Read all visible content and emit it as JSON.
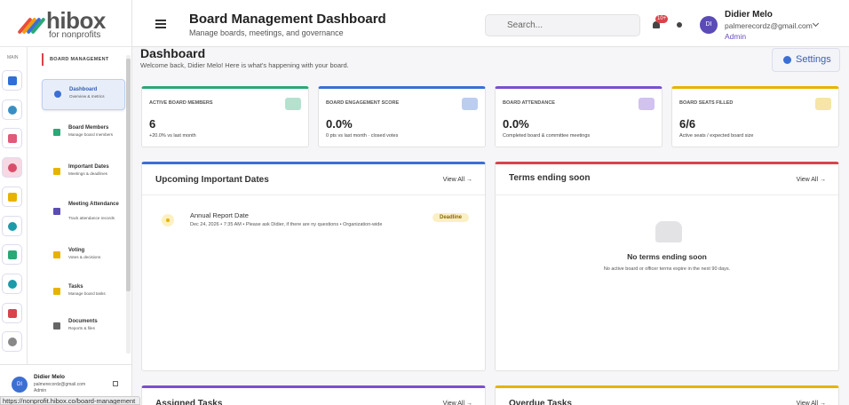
{
  "logo": {
    "name": "hibox",
    "tagline": "for nonprofits"
  },
  "header": {
    "title": "Board Management Dashboard",
    "subtitle": "Manage boards, meetings, and governance",
    "search_placeholder": "Search...",
    "notification_count": "10+",
    "user": {
      "initials": "DI",
      "name": "Didier Melo",
      "email": "palmerecordz@gmail.com",
      "role": "Admin"
    }
  },
  "rail": {
    "label": "MAIN"
  },
  "sidebar": {
    "section": "BOARD MANAGEMENT",
    "items": [
      {
        "title": "Dashboard",
        "subtitle": "Overview & metrics"
      },
      {
        "title": "Board Members",
        "subtitle": "Manage board members"
      },
      {
        "title": "Important Dates",
        "subtitle": "Meetings & deadlines"
      },
      {
        "title": "Meeting Attendance",
        "subtitle": "Track attendance records"
      },
      {
        "title": "Voting",
        "subtitle": "Votes & decisions"
      },
      {
        "title": "Tasks",
        "subtitle": "Manage board tasks"
      },
      {
        "title": "Documents",
        "subtitle": "Reports & files"
      }
    ],
    "user": {
      "initials": "DI",
      "name": "Didier Melo",
      "email": "palmerecordz@gmail.com",
      "role": "Admin"
    }
  },
  "page": {
    "title": "Dashboard",
    "welcome": "Welcome back, Didier Melo! Here is what's happening with your board.",
    "settings": "Settings"
  },
  "stats": [
    {
      "label": "ACTIVE BOARD MEMBERS",
      "value": "6",
      "sub": "+20.0% vs last month",
      "color": "#2aa876"
    },
    {
      "label": "BOARD ENGAGEMENT SCORE",
      "value": "0.0%",
      "sub": "0 pts vs last month · closed votes",
      "color": "#3b6fd4"
    },
    {
      "label": "BOARD ATTENDANCE",
      "value": "0.0%",
      "sub": "Completed board & committee meetings",
      "color": "#7b4fd0"
    },
    {
      "label": "BOARD SEATS FILLED",
      "value": "6/6",
      "sub": "Active seats / expected board size",
      "color": "#e6b400"
    }
  ],
  "panels": [
    {
      "title": "Upcoming Important Dates",
      "link": "View All →",
      "color": "#3b6fd4"
    },
    {
      "title": "Terms ending soon",
      "link": "View All →",
      "color": "#d9434a"
    },
    {
      "title": "Assigned Tasks",
      "link": "View All →",
      "color": "#7b4fd0"
    },
    {
      "title": "Overdue Tasks",
      "link": "View All →",
      "color": "#e6b400"
    }
  ],
  "upcoming": {
    "title": "Annual Report Date",
    "details": "Dec 24, 2026 • 7:35 AM • Please ask Didier, if there are ny questions • Organization-wide",
    "tag": "Deadline"
  },
  "terms_empty": {
    "title": "No terms ending soon",
    "text": "No active board or officer terms expire in the next 90 days."
  },
  "status_url": "https://nonprofit.hibox.co/board-management"
}
